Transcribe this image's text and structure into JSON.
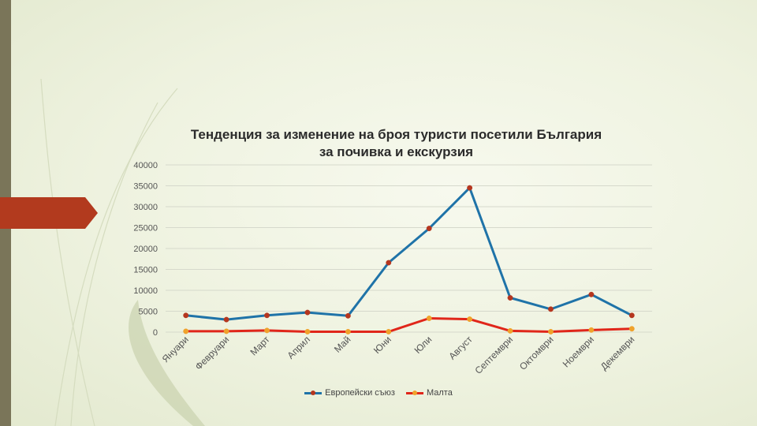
{
  "chart_data": {
    "type": "line",
    "title": "Тенденция за изменение на броя  туристи посетили България за почивка и екскурзия",
    "categories": [
      "Януари",
      "Февруари",
      "Март",
      "Април",
      "Май",
      "Юни",
      "Юли",
      "Август",
      "Септември",
      "Октомври",
      "Ноември",
      "Декември"
    ],
    "series": [
      {
        "name": "Европейски съюз",
        "color": "#1f73a8",
        "marker": "#b5361f",
        "values": [
          4000,
          3000,
          4000,
          4700,
          3900,
          16600,
          24800,
          34500,
          8200,
          5500,
          9000,
          4000
        ]
      },
      {
        "name": "Малта",
        "color": "#e0261a",
        "marker": "#f0a22b",
        "values": [
          200,
          200,
          400,
          100,
          100,
          100,
          3300,
          3100,
          300,
          100,
          500,
          800
        ]
      }
    ],
    "ylim": [
      0,
      40000
    ],
    "yticks": [
      0,
      5000,
      10000,
      15000,
      20000,
      25000,
      30000,
      35000,
      40000
    ],
    "grid": true,
    "legend_position": "bottom"
  }
}
